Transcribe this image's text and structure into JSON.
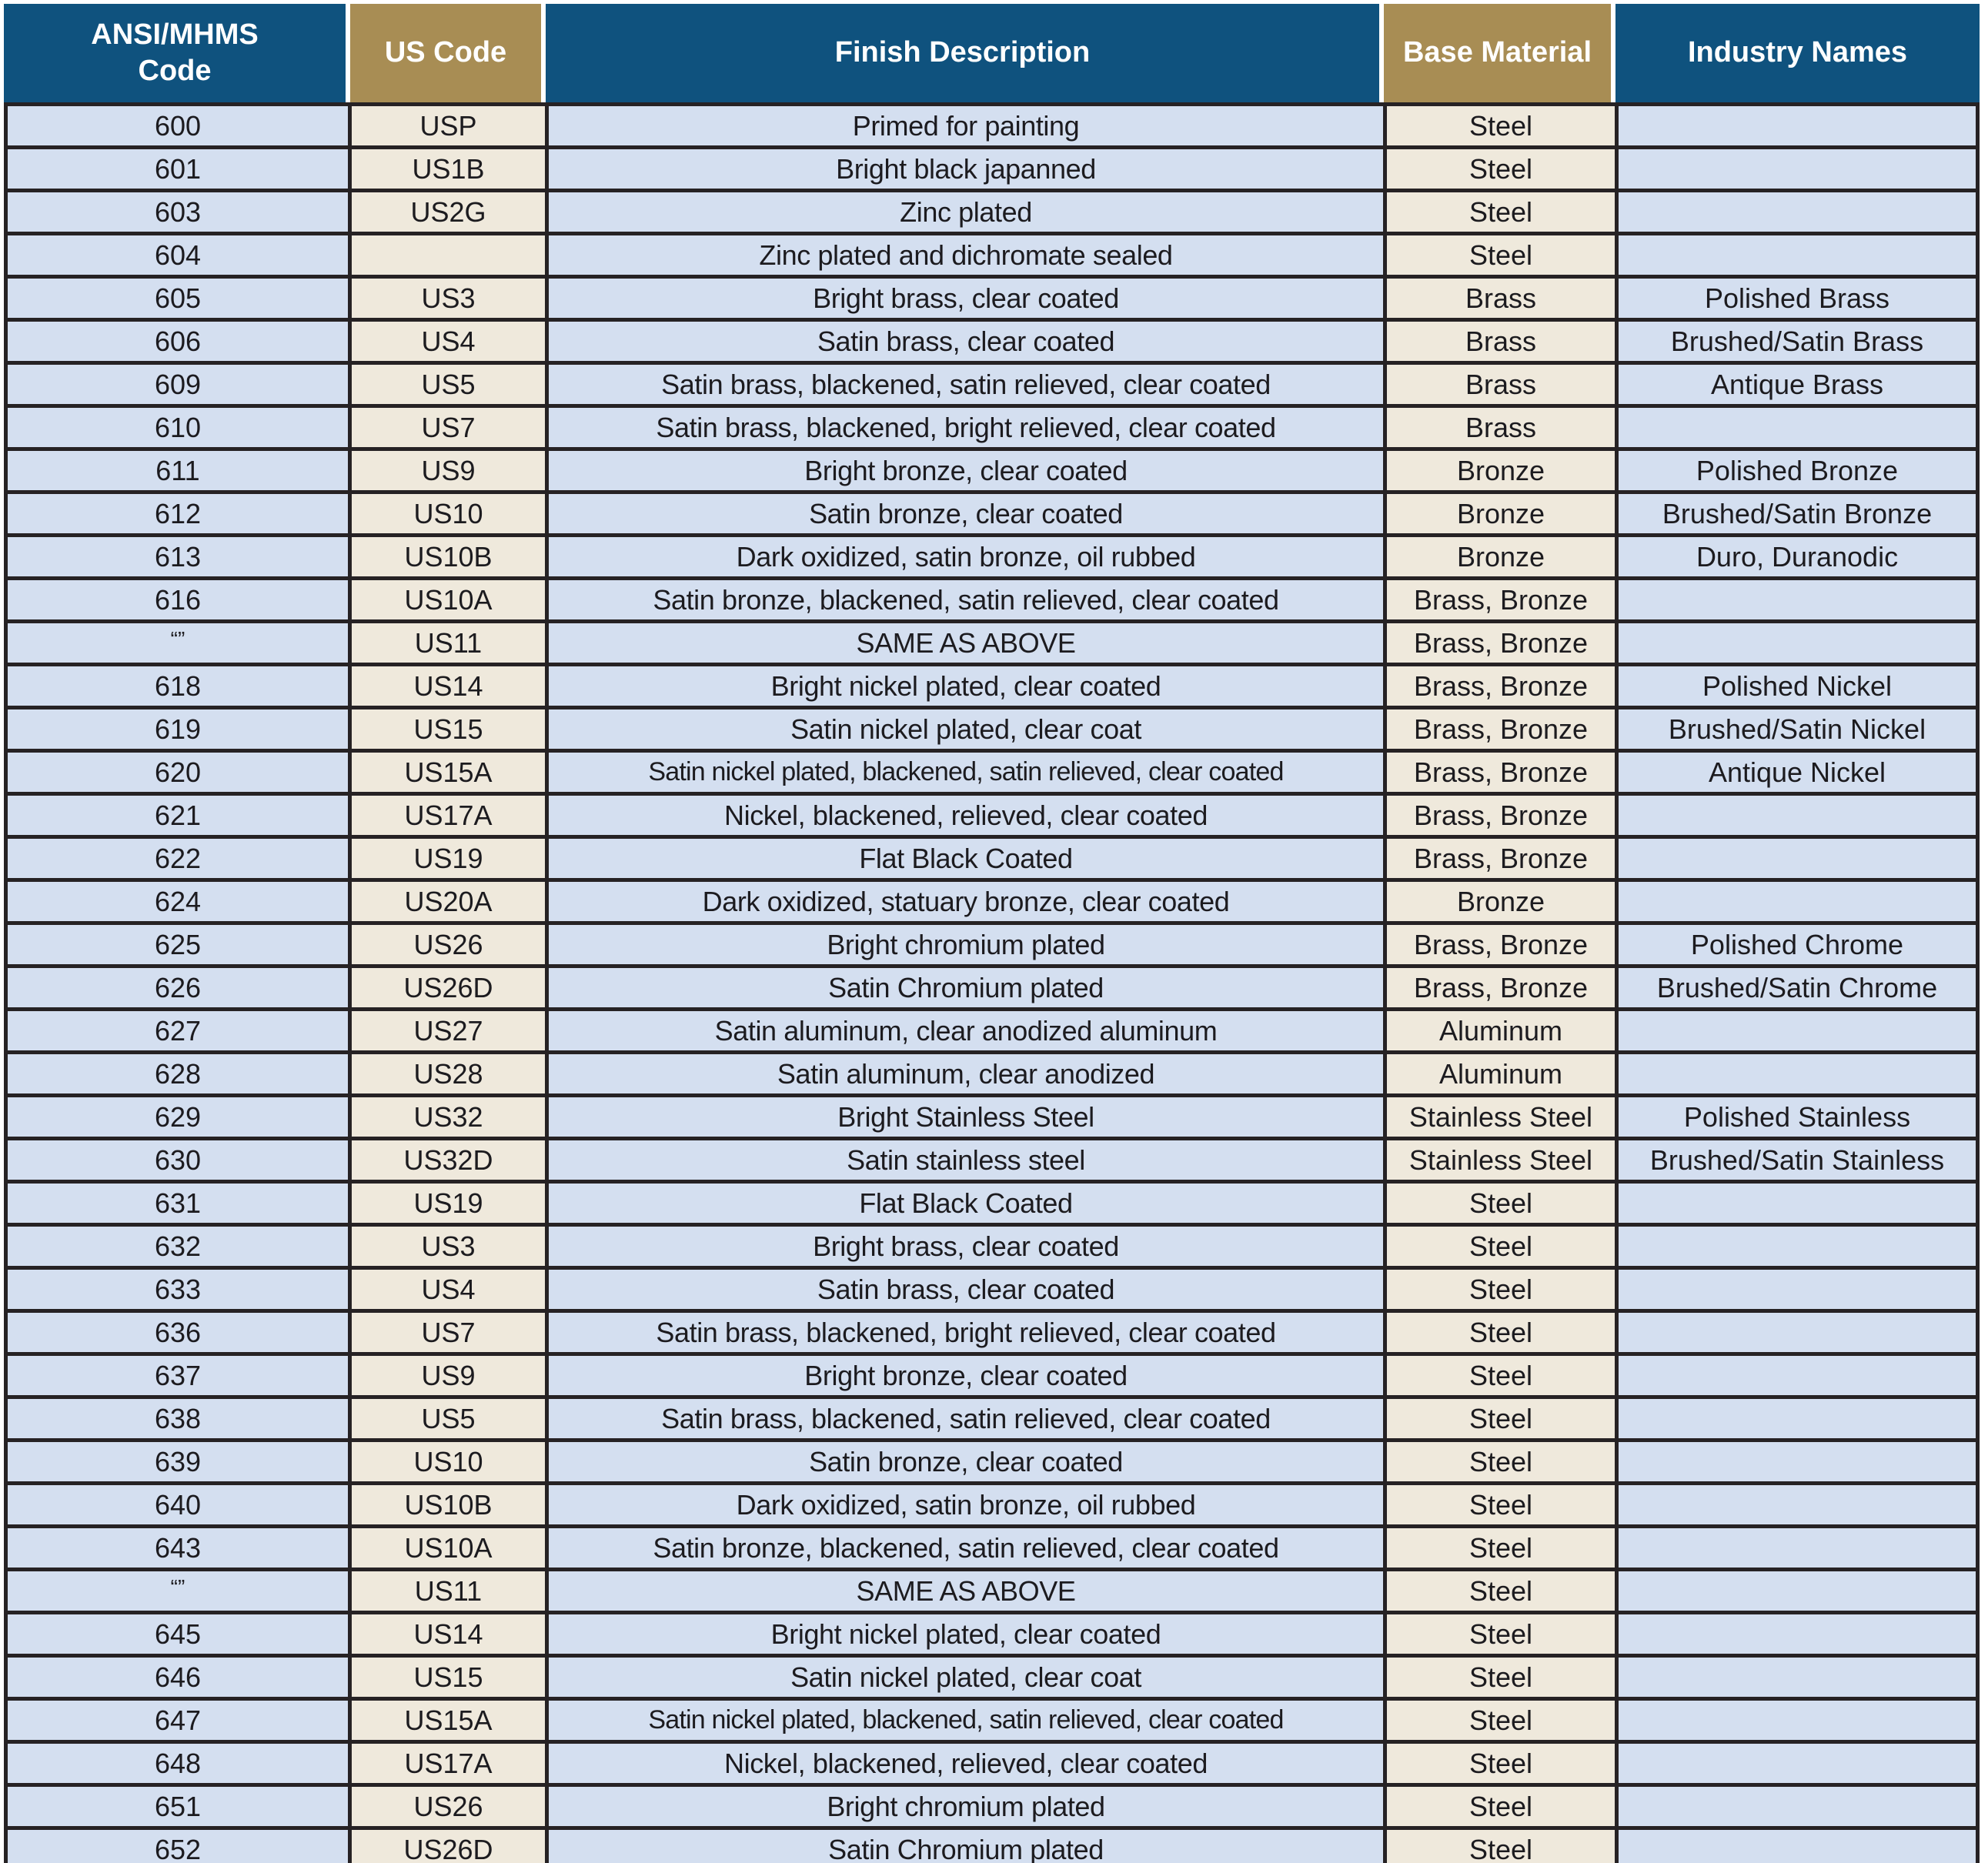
{
  "colors": {
    "header_blue": "#0f527e",
    "header_gold": "#a88d54",
    "row_blue": "#d4dff0",
    "row_cream": "#efe9dc",
    "grid_black": "#262224",
    "header_text": "#ffffff",
    "body_text": "#1c1b1f"
  },
  "table": {
    "headers": [
      {
        "line1": "ANSI/MHMS",
        "line2": "Code"
      },
      {
        "line1": "US Code",
        "line2": ""
      },
      {
        "line1": "Finish Description",
        "line2": ""
      },
      {
        "line1": "Base Material",
        "line2": ""
      },
      {
        "line1": "Industry Names",
        "line2": ""
      }
    ],
    "rows": [
      {
        "ansi": "600",
        "us": "USP",
        "finish": "Primed for painting",
        "base": "Steel",
        "industry": ""
      },
      {
        "ansi": "601",
        "us": "US1B",
        "finish": "Bright black japanned",
        "base": "Steel",
        "industry": ""
      },
      {
        "ansi": "603",
        "us": "US2G",
        "finish": "Zinc plated",
        "base": "Steel",
        "industry": ""
      },
      {
        "ansi": "604",
        "us": "",
        "finish": "Zinc plated and dichromate sealed",
        "base": "Steel",
        "industry": ""
      },
      {
        "ansi": "605",
        "us": "US3",
        "finish": "Bright brass, clear coated",
        "base": "Brass",
        "industry": "Polished Brass"
      },
      {
        "ansi": "606",
        "us": "US4",
        "finish": "Satin brass, clear coated",
        "base": "Brass",
        "industry": "Brushed/Satin Brass"
      },
      {
        "ansi": "609",
        "us": "US5",
        "finish": "Satin brass, blackened, satin relieved, clear coated",
        "base": "Brass",
        "industry": "Antique Brass"
      },
      {
        "ansi": "610",
        "us": "US7",
        "finish": "Satin brass, blackened, bright relieved, clear coated",
        "base": "Brass",
        "industry": ""
      },
      {
        "ansi": "611",
        "us": "US9",
        "finish": "Bright bronze, clear coated",
        "base": "Bronze",
        "industry": "Polished Bronze"
      },
      {
        "ansi": "612",
        "us": "US10",
        "finish": "Satin bronze, clear coated",
        "base": "Bronze",
        "industry": "Brushed/Satin Bronze"
      },
      {
        "ansi": "613",
        "us": "US10B",
        "finish": "Dark oxidized, satin bronze, oil rubbed",
        "base": "Bronze",
        "industry": "Duro, Duranodic"
      },
      {
        "ansi": "616",
        "us": "US10A",
        "finish": "Satin bronze, blackened, satin relieved, clear coated",
        "base": "Brass, Bronze",
        "industry": ""
      },
      {
        "ansi": "“”",
        "us": "US11",
        "finish": "SAME AS ABOVE",
        "base": "Brass, Bronze",
        "industry": ""
      },
      {
        "ansi": "618",
        "us": "US14",
        "finish": "Bright nickel plated, clear coated",
        "base": "Brass, Bronze",
        "industry": "Polished Nickel"
      },
      {
        "ansi": "619",
        "us": "US15",
        "finish": "Satin nickel plated, clear coat",
        "base": "Brass, Bronze",
        "industry": "Brushed/Satin Nickel"
      },
      {
        "ansi": "620",
        "us": "US15A",
        "finish": "Satin nickel plated, blackened, satin relieved, clear coated",
        "base": "Brass, Bronze",
        "industry": "Antique Nickel"
      },
      {
        "ansi": "621",
        "us": "US17A",
        "finish": "Nickel, blackened, relieved, clear coated",
        "base": "Brass, Bronze",
        "industry": ""
      },
      {
        "ansi": "622",
        "us": "US19",
        "finish": "Flat Black Coated",
        "base": "Brass, Bronze",
        "industry": ""
      },
      {
        "ansi": "624",
        "us": "US20A",
        "finish": "Dark oxidized, statuary bronze, clear coated",
        "base": "Bronze",
        "industry": ""
      },
      {
        "ansi": "625",
        "us": "US26",
        "finish": "Bright chromium plated",
        "base": "Brass, Bronze",
        "industry": "Polished Chrome"
      },
      {
        "ansi": "626",
        "us": "US26D",
        "finish": "Satin Chromium plated",
        "base": "Brass, Bronze",
        "industry": "Brushed/Satin Chrome"
      },
      {
        "ansi": "627",
        "us": "US27",
        "finish": "Satin aluminum, clear anodized aluminum",
        "base": "Aluminum",
        "industry": ""
      },
      {
        "ansi": "628",
        "us": "US28",
        "finish": "Satin aluminum, clear anodized",
        "base": "Aluminum",
        "industry": ""
      },
      {
        "ansi": "629",
        "us": "US32",
        "finish": "Bright Stainless Steel",
        "base": "Stainless Steel",
        "industry": "Polished Stainless"
      },
      {
        "ansi": "630",
        "us": "US32D",
        "finish": "Satin stainless steel",
        "base": "Stainless Steel",
        "industry": "Brushed/Satin Stainless"
      },
      {
        "ansi": "631",
        "us": "US19",
        "finish": "Flat Black Coated",
        "base": "Steel",
        "industry": ""
      },
      {
        "ansi": "632",
        "us": "US3",
        "finish": "Bright brass, clear coated",
        "base": "Steel",
        "industry": ""
      },
      {
        "ansi": "633",
        "us": "US4",
        "finish": "Satin brass, clear coated",
        "base": "Steel",
        "industry": ""
      },
      {
        "ansi": "636",
        "us": "US7",
        "finish": "Satin brass, blackened, bright relieved, clear coated",
        "base": "Steel",
        "industry": ""
      },
      {
        "ansi": "637",
        "us": "US9",
        "finish": "Bright bronze, clear coated",
        "base": "Steel",
        "industry": ""
      },
      {
        "ansi": "638",
        "us": "US5",
        "finish": "Satin brass, blackened, satin relieved, clear coated",
        "base": "Steel",
        "industry": ""
      },
      {
        "ansi": "639",
        "us": "US10",
        "finish": "Satin bronze, clear coated",
        "base": "Steel",
        "industry": ""
      },
      {
        "ansi": "640",
        "us": "US10B",
        "finish": "Dark oxidized, satin bronze, oil rubbed",
        "base": "Steel",
        "industry": ""
      },
      {
        "ansi": "643",
        "us": "US10A",
        "finish": "Satin bronze, blackened, satin relieved, clear coated",
        "base": "Steel",
        "industry": ""
      },
      {
        "ansi": "“”",
        "us": "US11",
        "finish": "SAME AS ABOVE",
        "base": "Steel",
        "industry": ""
      },
      {
        "ansi": "645",
        "us": "US14",
        "finish": "Bright nickel plated, clear coated",
        "base": "Steel",
        "industry": ""
      },
      {
        "ansi": "646",
        "us": "US15",
        "finish": "Satin nickel plated, clear coat",
        "base": "Steel",
        "industry": ""
      },
      {
        "ansi": "647",
        "us": "US15A",
        "finish": "Satin nickel plated, blackened, satin relieved, clear coated",
        "base": "Steel",
        "industry": ""
      },
      {
        "ansi": "648",
        "us": "US17A",
        "finish": "Nickel, blackened, relieved, clear coated",
        "base": "Steel",
        "industry": ""
      },
      {
        "ansi": "651",
        "us": "US26",
        "finish": "Bright chromium plated",
        "base": "Steel",
        "industry": ""
      },
      {
        "ansi": "652",
        "us": "US26D",
        "finish": "Satin Chromium plated",
        "base": "Steel",
        "industry": ""
      }
    ]
  }
}
